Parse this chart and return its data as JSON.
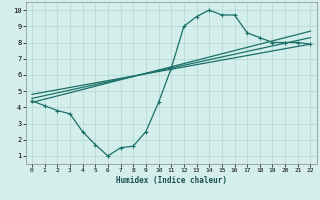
{
  "xlabel": "Humidex (Indice chaleur)",
  "bg_color": "#d4eeeb",
  "grid_color": "#b8dbd8",
  "line_color": "#1a7068",
  "xlim": [
    -0.5,
    22.5
  ],
  "ylim": [
    0.5,
    10.5
  ],
  "xticks": [
    0,
    1,
    2,
    3,
    4,
    5,
    6,
    7,
    8,
    9,
    10,
    11,
    12,
    13,
    14,
    15,
    16,
    17,
    18,
    19,
    20,
    21,
    22
  ],
  "yticks": [
    1,
    2,
    3,
    4,
    5,
    6,
    7,
    8,
    9,
    10
  ],
  "line1_x": [
    0,
    1,
    2,
    3,
    4,
    5,
    6,
    7,
    8,
    9,
    10,
    11,
    12,
    13,
    14,
    15,
    16,
    17,
    18,
    19,
    20,
    21,
    22
  ],
  "line1_y": [
    4.4,
    4.1,
    3.8,
    3.6,
    2.5,
    1.7,
    1.0,
    1.5,
    1.6,
    2.5,
    4.3,
    6.4,
    9.0,
    9.6,
    10.0,
    9.7,
    9.7,
    8.6,
    8.3,
    8.0,
    8.0,
    8.0,
    7.9
  ],
  "line2_x": [
    0,
    22
  ],
  "line2_y": [
    4.3,
    8.7
  ],
  "line3_x": [
    0,
    22
  ],
  "line3_y": [
    4.55,
    8.3
  ],
  "line4_x": [
    0,
    22
  ],
  "line4_y": [
    4.8,
    7.9
  ]
}
